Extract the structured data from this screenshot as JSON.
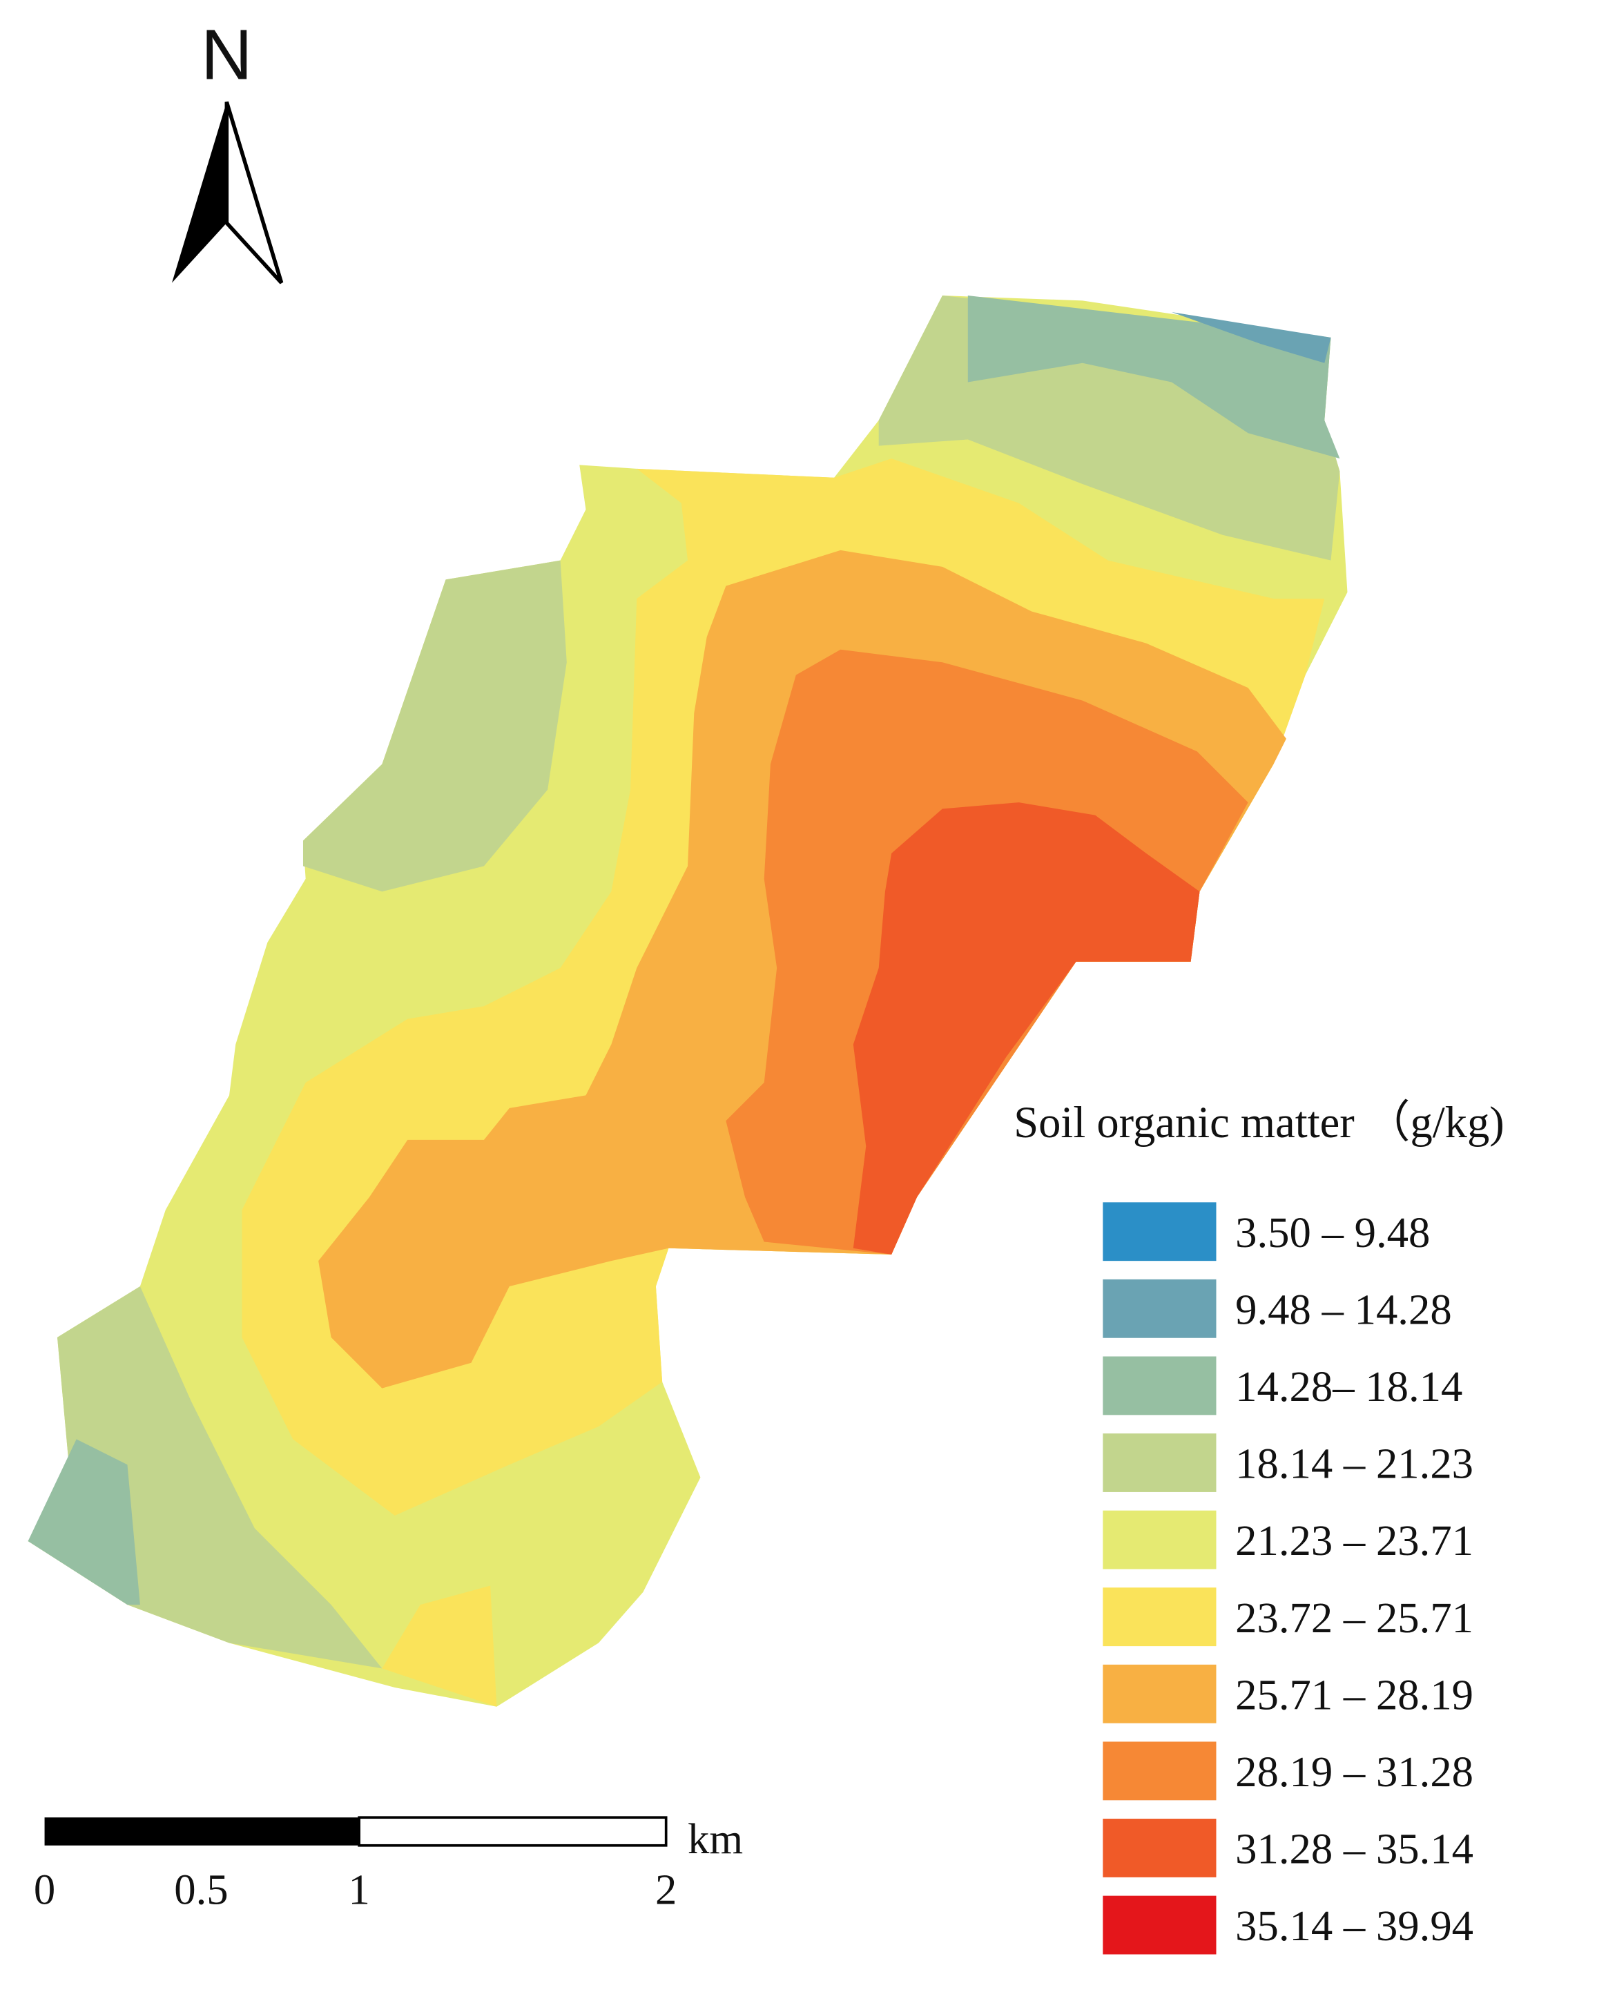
{
  "north_label": "N",
  "legend": {
    "title": "Soil organic matter （g/kg)",
    "items": [
      {
        "label": "3.50 – 9.48",
        "color": "#2b8fc7"
      },
      {
        "label": "9.48 – 14.28",
        "color": "#6aa3b3"
      },
      {
        "label": "14.28– 18.14",
        "color": "#96bfa2"
      },
      {
        "label": "18.14 – 21.23",
        "color": "#c2d58d"
      },
      {
        "label": "21.23 – 23.71",
        "color": "#e5ea72"
      },
      {
        "label": "23.72 – 25.71",
        "color": "#fae35a"
      },
      {
        "label": "25.71 – 28.19",
        "color": "#f8b043"
      },
      {
        "label": "28.19 – 31.28",
        "color": "#f68835"
      },
      {
        "label": "31.28 – 35.14",
        "color": "#f05a28"
      },
      {
        "label": "35.14 – 39.94",
        "color": "#e4161b"
      }
    ]
  },
  "scale_bar": {
    "labels": [
      "0",
      "0.5",
      "1",
      "2"
    ],
    "unit": "km"
  }
}
